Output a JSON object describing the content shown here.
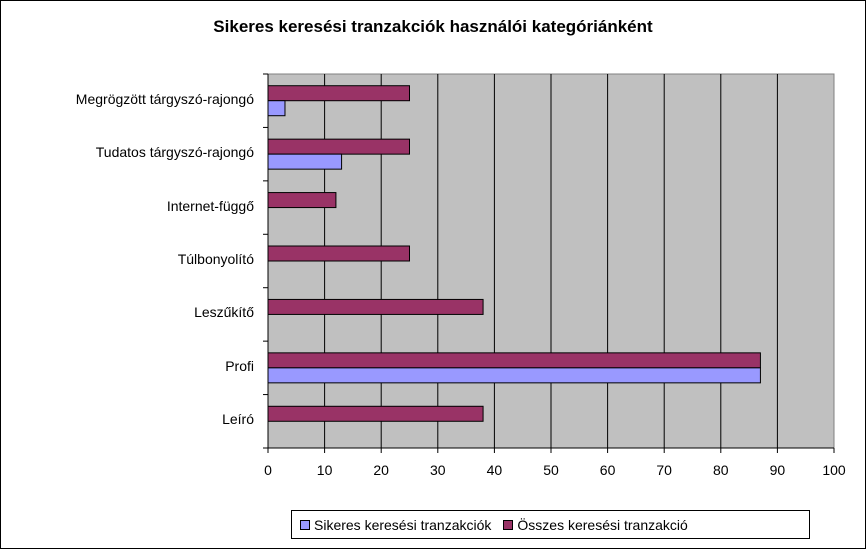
{
  "chart_data": {
    "type": "bar",
    "orientation": "horizontal",
    "title": "Sikeres keresési tranzakciók használói kategóriánként",
    "categories": [
      "Megrögzött tárgyszó-rajongó",
      "Tudatos tárgyszó-rajongó",
      "Internet-függő",
      "Túlbonyolító",
      "Leszűkítő",
      "Profi",
      "Leíró"
    ],
    "series": [
      {
        "name": "Összes keresési tranzakció",
        "color": "#993366",
        "values": [
          25,
          25,
          12,
          25,
          38,
          87,
          38
        ]
      },
      {
        "name": "Sikeres keresési tranzakciók",
        "color": "#9999ff",
        "values": [
          3,
          13,
          0,
          0,
          0,
          87,
          0
        ]
      }
    ],
    "xlim": [
      0,
      100
    ],
    "xticks": [
      0,
      10,
      20,
      30,
      40,
      50,
      60,
      70,
      80,
      90,
      100
    ],
    "grid": true,
    "plot_background": "#c0c0c0",
    "legend_position": "bottom",
    "legend_order": [
      "Sikeres keresési tranzakciók",
      "Összes keresési tranzakció"
    ]
  }
}
